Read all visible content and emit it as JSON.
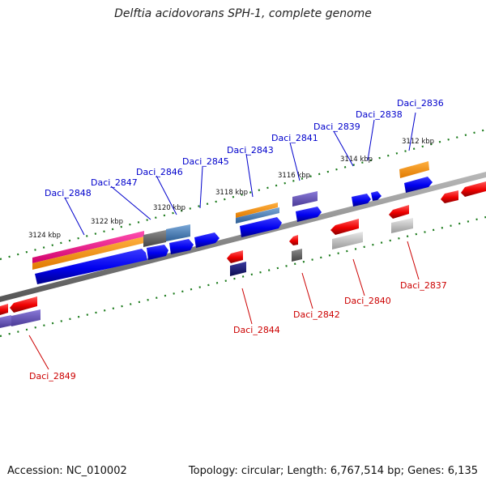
{
  "title": "Delftia acidovorans SPH-1, complete genome",
  "footer": {
    "accession": "Accession: NC_010002",
    "summary": "Topology: circular; Length: 6,767,514 bp; Genes: 6,135"
  },
  "colors": {
    "forward_label": "#0000cc",
    "reverse_label": "#cc0000",
    "backbone": "#888888",
    "tick": "#1a7a1a"
  },
  "kbp_labels": [
    "3112 kbp",
    "3114 kbp",
    "3116 kbp",
    "3118 kbp",
    "3120 kbp",
    "3122 kbp",
    "3124 kbp"
  ],
  "forward_genes": [
    "Daci_2836",
    "Daci_2838",
    "Daci_2839",
    "Daci_2841",
    "Daci_2843",
    "Daci_2845",
    "Daci_2846",
    "Daci_2847",
    "Daci_2848"
  ],
  "reverse_genes": [
    "Daci_2837",
    "Daci_2840",
    "Daci_2842",
    "Daci_2844",
    "Daci_2849"
  ]
}
